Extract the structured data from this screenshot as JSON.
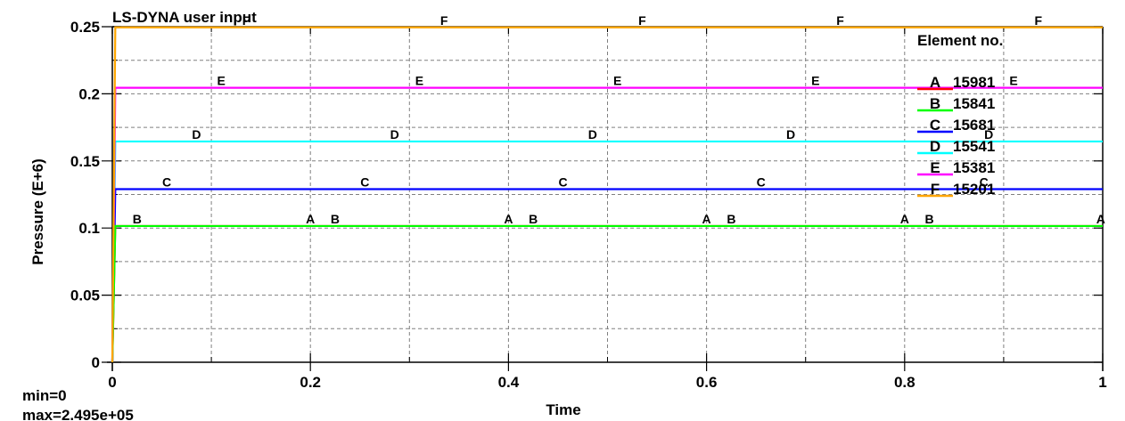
{
  "chart_data": {
    "type": "line",
    "title": "LS-DYNA user input",
    "xlabel": "Time",
    "ylabel": "Pressure (E+6)",
    "xlim": [
      0,
      1
    ],
    "ylim": [
      0,
      0.25
    ],
    "x_ticks": [
      "0",
      "0.2",
      "0.4",
      "0.6",
      "0.8",
      "1"
    ],
    "y_ticks": [
      "0",
      "0.05",
      "0.1",
      "0.15",
      "0.2",
      "0.25"
    ],
    "grid": true,
    "legend": {
      "title": "Element no.",
      "position": "upper right, inside plot"
    },
    "series": [
      {
        "marker": "A",
        "name": "15981",
        "color": "#ff0000",
        "x": [
          0,
          0.003,
          1
        ],
        "values": [
          0,
          0.1015,
          0.1015
        ]
      },
      {
        "marker": "B",
        "name": "15841",
        "color": "#00ff00",
        "x": [
          0,
          0.003,
          1
        ],
        "values": [
          0,
          0.1015,
          0.1015
        ]
      },
      {
        "marker": "C",
        "name": "15681",
        "color": "#0000ff",
        "x": [
          0,
          0.003,
          1
        ],
        "values": [
          0,
          0.129,
          0.129
        ]
      },
      {
        "marker": "D",
        "name": "15541",
        "color": "#00ffff",
        "x": [
          0,
          0.003,
          1
        ],
        "values": [
          0,
          0.1645,
          0.1645
        ]
      },
      {
        "marker": "E",
        "name": "15381",
        "color": "#ff00ff",
        "x": [
          0,
          0.003,
          1
        ],
        "values": [
          0,
          0.2045,
          0.2045
        ]
      },
      {
        "marker": "F",
        "name": "15201",
        "color": "#ffa500",
        "x": [
          0,
          0.003,
          1
        ],
        "values": [
          0,
          0.2495,
          0.2495
        ]
      }
    ],
    "annotations": {
      "min": "min=0",
      "max": "max=2.495e+05"
    }
  },
  "labels": {
    "title": "LS-DYNA user input",
    "xlabel": "Time",
    "ylabel": "Pressure (E+6)",
    "legend_title": "Element no.",
    "min_text": "min=0",
    "max_text": "max=2.495e+05"
  },
  "legend_items": [
    {
      "marker": "A",
      "id": "15981",
      "color": "#ff0000"
    },
    {
      "marker": "B",
      "id": "15841",
      "color": "#00ff00"
    },
    {
      "marker": "C",
      "id": "15681",
      "color": "#0000ff"
    },
    {
      "marker": "D",
      "id": "15541",
      "color": "#00ffff"
    },
    {
      "marker": "E",
      "id": "15381",
      "color": "#ff00ff"
    },
    {
      "marker": "F",
      "id": "15201",
      "color": "#ffa500"
    }
  ]
}
